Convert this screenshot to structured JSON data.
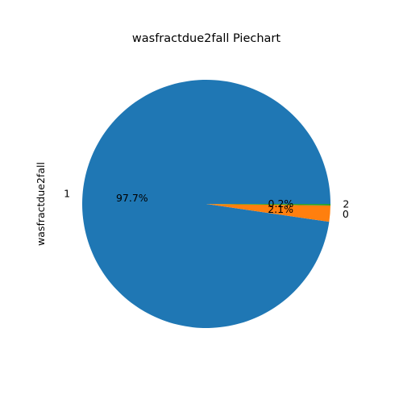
{
  "chart_data": {
    "type": "pie",
    "title": "wasfractdue2fall Piechart",
    "ylabel": "wasfractdue2fall",
    "xlabel": "",
    "start_angle_deg": 0,
    "direction": "counterclockwise",
    "slices": [
      {
        "label": "1",
        "value": 97.7,
        "pct_label": "97.7%",
        "color": "#1f77b4"
      },
      {
        "label": "0",
        "value": 2.1,
        "pct_label": "2.1%",
        "color": "#ff7f0e"
      },
      {
        "label": "2",
        "value": 0.2,
        "pct_label": "0.2%",
        "color": "#2ca02c"
      }
    ]
  }
}
